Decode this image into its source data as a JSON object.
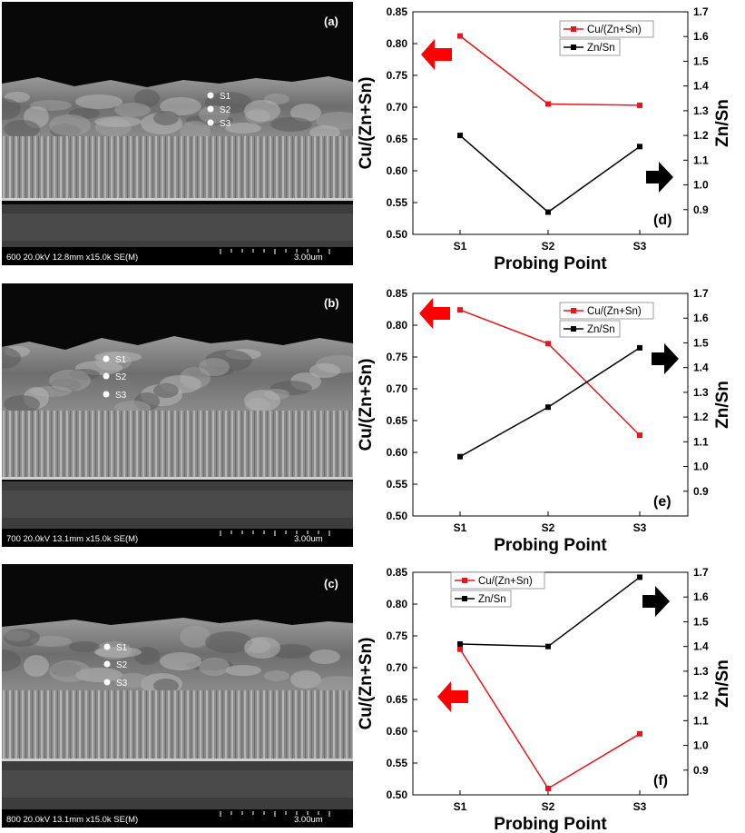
{
  "sem_panels": [
    {
      "label": "(a)",
      "info": "600 20.0kV 12.8mm x15.0k SE(M)",
      "scale": "3.00um",
      "points": [
        "S1",
        "S2",
        "S3"
      ]
    },
    {
      "label": "(b)",
      "info": "700 20.0kV 13.1mm x15.0k SE(M)",
      "scale": "3.00um",
      "points": [
        "S1",
        "S2",
        "S3"
      ]
    },
    {
      "label": "(c)",
      "info": "800 20.0kV 13.1mm x15.0k SE(M)",
      "scale": "3.00um",
      "points": [
        "S1",
        "S2",
        "S3"
      ]
    }
  ],
  "colors": {
    "cu_series": "#e8161b",
    "zn_series": "#000000",
    "arrow_red": "#ff0000",
    "arrow_black": "#000000"
  },
  "chart_data": [
    {
      "type": "line",
      "panel_label": "(d)",
      "categories": [
        "S1",
        "S2",
        "S3"
      ],
      "xlabel": "Probing Point",
      "ylabel": "Cu/(Zn+Sn)",
      "y2label": "Zn/Sn",
      "ylim": [
        0.5,
        0.85
      ],
      "y2lim": [
        0.8,
        1.7
      ],
      "yticks": [
        "0.50",
        "0.55",
        "0.60",
        "0.65",
        "0.70",
        "0.75",
        "0.80",
        "0.85"
      ],
      "y2ticks": [
        "0.9",
        "1.0",
        "1.1",
        "1.2",
        "1.3",
        "1.4",
        "1.5",
        "1.6",
        "1.7"
      ],
      "series": [
        {
          "name": "Cu/(Zn+Sn)",
          "axis": "left",
          "values": [
            0.812,
            0.705,
            0.703
          ]
        },
        {
          "name": "Zn/Sn",
          "axis": "right",
          "values": [
            1.2,
            0.89,
            1.155
          ]
        }
      ],
      "legend": "top-right",
      "arrows": {
        "red": "left",
        "black": "right"
      }
    },
    {
      "type": "line",
      "panel_label": "(e)",
      "categories": [
        "S1",
        "S2",
        "S3"
      ],
      "xlabel": "Probing Point",
      "ylabel": "Cu/(Zn+Sn)",
      "y2label": "Zn/Sn",
      "ylim": [
        0.5,
        0.85
      ],
      "y2lim": [
        0.8,
        1.7
      ],
      "yticks": [
        "0.50",
        "0.55",
        "0.60",
        "0.65",
        "0.70",
        "0.75",
        "0.80",
        "0.85"
      ],
      "y2ticks": [
        "0.9",
        "1.0",
        "1.1",
        "1.2",
        "1.3",
        "1.4",
        "1.5",
        "1.6",
        "1.7"
      ],
      "series": [
        {
          "name": "Cu/(Zn+Sn)",
          "axis": "left",
          "values": [
            0.824,
            0.771,
            0.627
          ]
        },
        {
          "name": "Zn/Sn",
          "axis": "right",
          "values": [
            1.04,
            1.24,
            1.48
          ]
        }
      ],
      "legend": "top-right",
      "arrows": {
        "red": "left",
        "black": "right"
      }
    },
    {
      "type": "line",
      "panel_label": "(f)",
      "categories": [
        "S1",
        "S2",
        "S3"
      ],
      "xlabel": "Probing Point",
      "ylabel": "Cu/(Zn+Sn)",
      "y2label": "Zn/Sn",
      "ylim": [
        0.5,
        0.85
      ],
      "y2lim": [
        0.8,
        1.7
      ],
      "yticks": [
        "0.50",
        "0.55",
        "0.60",
        "0.65",
        "0.70",
        "0.75",
        "0.80",
        "0.85"
      ],
      "y2ticks": [
        "0.9",
        "1.0",
        "1.1",
        "1.2",
        "1.3",
        "1.4",
        "1.5",
        "1.6",
        "1.7"
      ],
      "series": [
        {
          "name": "Cu/(Zn+Sn)",
          "axis": "left",
          "values": [
            0.729,
            0.51,
            0.596
          ]
        },
        {
          "name": "Zn/Sn",
          "axis": "right",
          "values": [
            1.41,
            1.4,
            1.68
          ]
        }
      ],
      "legend": "top-center",
      "arrows": {
        "red": "left",
        "black": "right"
      }
    }
  ]
}
